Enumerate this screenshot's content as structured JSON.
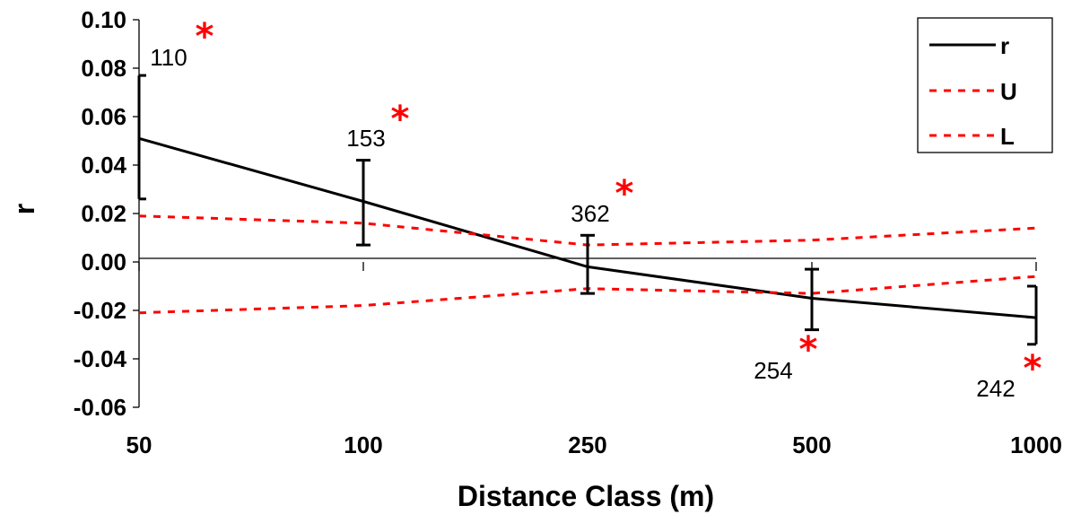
{
  "chart_data": {
    "type": "line",
    "title": "",
    "xlabel": "Distance Class (m)",
    "ylabel": "r",
    "categories": [
      "50",
      "100",
      "250",
      "500",
      "1000"
    ],
    "ylim": [
      -0.06,
      0.1
    ],
    "yticks": [
      "0.10",
      "0.08",
      "0.06",
      "0.04",
      "0.02",
      "0.00",
      "-0.02",
      "-0.04",
      "-0.06"
    ],
    "ytick_values": [
      0.1,
      0.08,
      0.06,
      0.04,
      0.02,
      0.0,
      -0.02,
      -0.04,
      -0.06
    ],
    "grid": false,
    "legend_position": "top-right",
    "series": [
      {
        "name": "r",
        "values": [
          0.051,
          0.025,
          -0.002,
          -0.015,
          -0.023
        ],
        "error_low": [
          0.026,
          0.007,
          -0.013,
          -0.028,
          -0.034
        ],
        "error_high": [
          0.077,
          0.042,
          0.011,
          -0.003,
          -0.01
        ],
        "color": "#000000",
        "style": "solid"
      },
      {
        "name": "U",
        "values": [
          0.019,
          0.016,
          0.007,
          0.009,
          0.014
        ],
        "color": "#ff0000",
        "style": "dashed"
      },
      {
        "name": "L",
        "values": [
          -0.021,
          -0.018,
          -0.011,
          -0.013,
          -0.006
        ],
        "color": "#ff0000",
        "style": "dashed"
      }
    ],
    "annotations": [
      {
        "label": "110",
        "marker": "*"
      },
      {
        "label": "153",
        "marker": "*"
      },
      {
        "label": "362",
        "marker": "*"
      },
      {
        "label": "254",
        "marker": "*"
      },
      {
        "label": "242",
        "marker": "*"
      }
    ],
    "colors": {
      "line": "#000000",
      "bounds": "#ff0000",
      "star": "#ff0000"
    }
  }
}
